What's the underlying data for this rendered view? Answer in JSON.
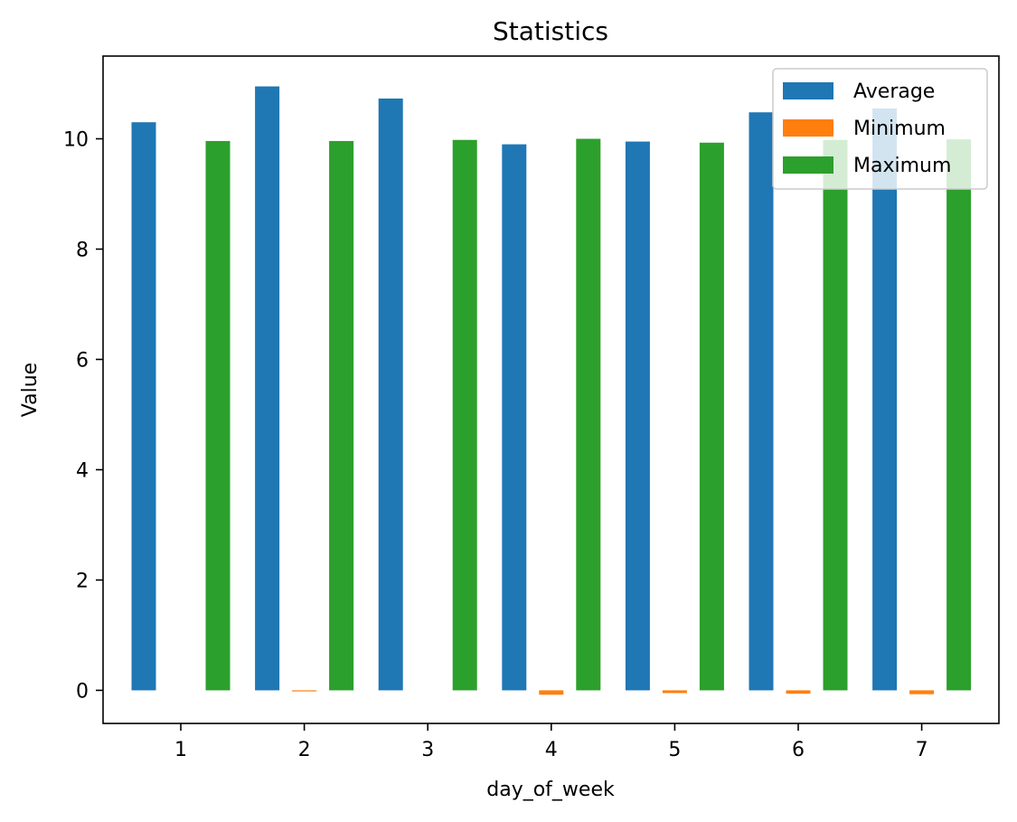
{
  "chart_data": {
    "type": "bar",
    "title": "Statistics",
    "xlabel": "day_of_week",
    "ylabel": "Value",
    "categories": [
      "1",
      "2",
      "3",
      "4",
      "5",
      "6",
      "7"
    ],
    "series": [
      {
        "name": "Average",
        "color": "#1f77b4",
        "values": [
          10.3,
          10.95,
          10.73,
          9.9,
          9.95,
          10.48,
          10.55
        ]
      },
      {
        "name": "Minimum",
        "color": "#ff7f0e",
        "values": [
          0.0,
          -0.02,
          0.0,
          -0.08,
          -0.05,
          -0.06,
          -0.07
        ]
      },
      {
        "name": "Maximum",
        "color": "#2ca02c",
        "values": [
          9.96,
          9.96,
          9.98,
          10.0,
          9.93,
          9.98,
          9.99
        ]
      }
    ],
    "ylim": [
      -0.6,
      11.5
    ],
    "yticks": [
      0,
      2,
      4,
      6,
      8,
      10
    ],
    "grid": false,
    "legend_position": "top-right"
  }
}
